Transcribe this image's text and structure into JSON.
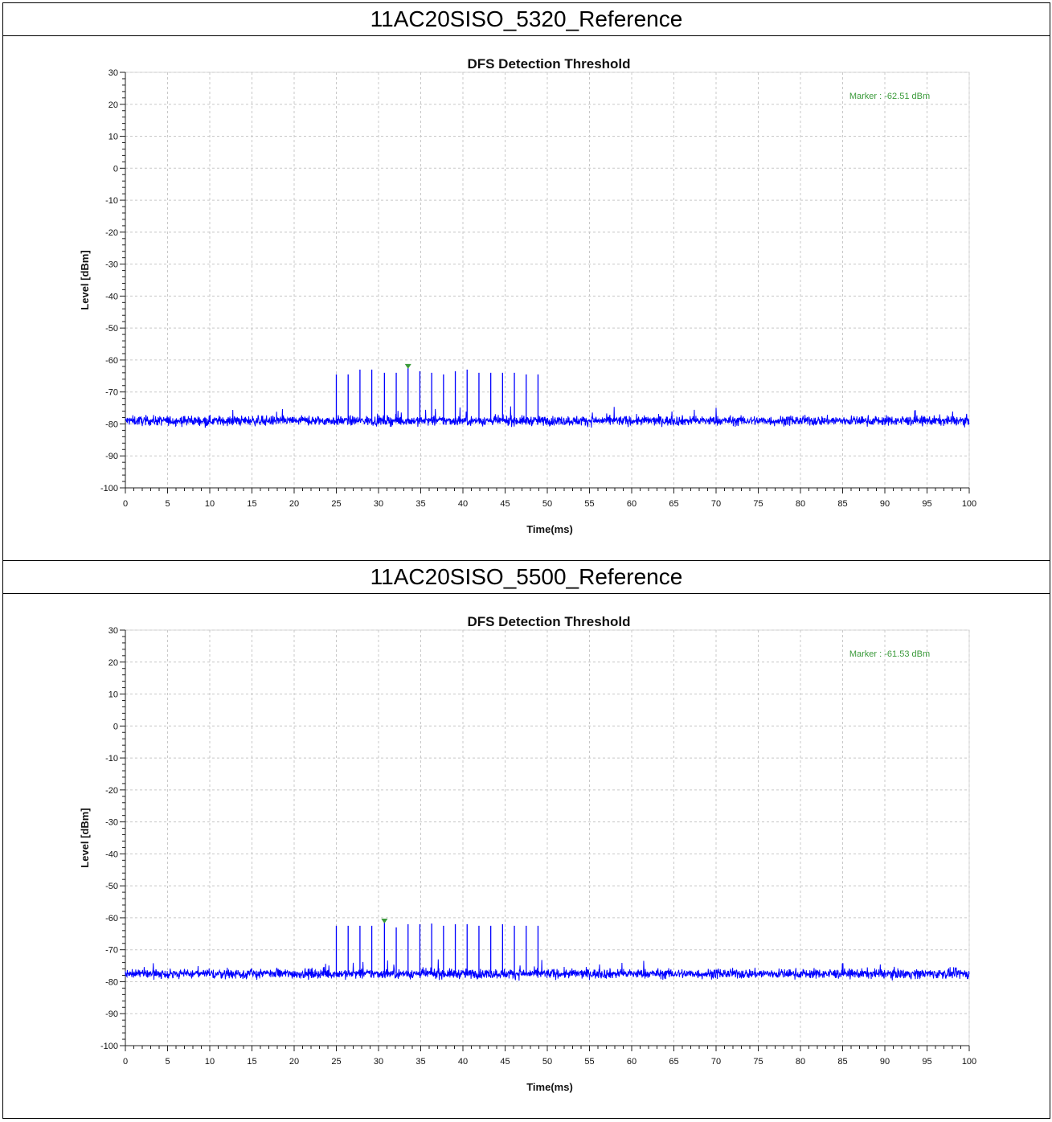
{
  "chart_data": [
    {
      "header": "11AC20SISO_5320_Reference",
      "type": "line",
      "title": "DFS Detection Threshold",
      "xlabel": "Time(ms)",
      "ylabel": "Level [dBm]",
      "xlim": [
        0,
        100
      ],
      "ylim": [
        -100,
        30
      ],
      "xticks": [
        0,
        5,
        10,
        15,
        20,
        25,
        30,
        35,
        40,
        45,
        50,
        55,
        60,
        65,
        70,
        75,
        80,
        85,
        90,
        95,
        100
      ],
      "yticks": [
        30,
        20,
        10,
        0,
        -10,
        -20,
        -30,
        -40,
        -50,
        -60,
        -70,
        -80,
        -90,
        -100
      ],
      "grid": true,
      "color": "#0000ff",
      "noise_floor_dbm": -79,
      "pulses": {
        "x": [
          25.0,
          26.4,
          27.8,
          29.2,
          30.7,
          32.1,
          33.5,
          34.9,
          36.3,
          37.7,
          39.1,
          40.5,
          41.9,
          43.3,
          44.7,
          46.1,
          47.5,
          48.9
        ],
        "y": [
          -64.5,
          -64.5,
          -63,
          -63,
          -64,
          -64,
          -62.5,
          -63.5,
          -64,
          -64.5,
          -63.5,
          -63,
          -64,
          -64,
          -64,
          -64,
          -64.5,
          -64.5
        ]
      },
      "marker": {
        "x": 33.5,
        "y": -62.51,
        "label": "Marker : -62.51 dBm"
      }
    },
    {
      "header": "11AC20SISO_5500_Reference",
      "type": "line",
      "title": "DFS Detection Threshold",
      "xlabel": "Time(ms)",
      "ylabel": "Level [dBm]",
      "xlim": [
        0,
        100
      ],
      "ylim": [
        -100,
        30
      ],
      "xticks": [
        0,
        5,
        10,
        15,
        20,
        25,
        30,
        35,
        40,
        45,
        50,
        55,
        60,
        65,
        70,
        75,
        80,
        85,
        90,
        95,
        100
      ],
      "yticks": [
        30,
        20,
        10,
        0,
        -10,
        -20,
        -30,
        -40,
        -50,
        -60,
        -70,
        -80,
        -90,
        -100
      ],
      "grid": true,
      "color": "#0000ff",
      "noise_floor_dbm": -77.5,
      "pulses": {
        "x": [
          25.0,
          26.4,
          27.8,
          29.2,
          30.7,
          32.1,
          33.5,
          34.9,
          36.3,
          37.7,
          39.1,
          40.5,
          41.9,
          43.3,
          44.7,
          46.1,
          47.5,
          48.9
        ],
        "y": [
          -62.5,
          -62.5,
          -62.5,
          -62.5,
          -61.5,
          -63,
          -62,
          -62,
          -61.8,
          -62.5,
          -62,
          -62,
          -62.5,
          -62.5,
          -62,
          -62.5,
          -62.5,
          -62.5
        ]
      },
      "marker": {
        "x": 30.7,
        "y": -61.53,
        "label": "Marker : -61.53 dBm"
      }
    }
  ]
}
